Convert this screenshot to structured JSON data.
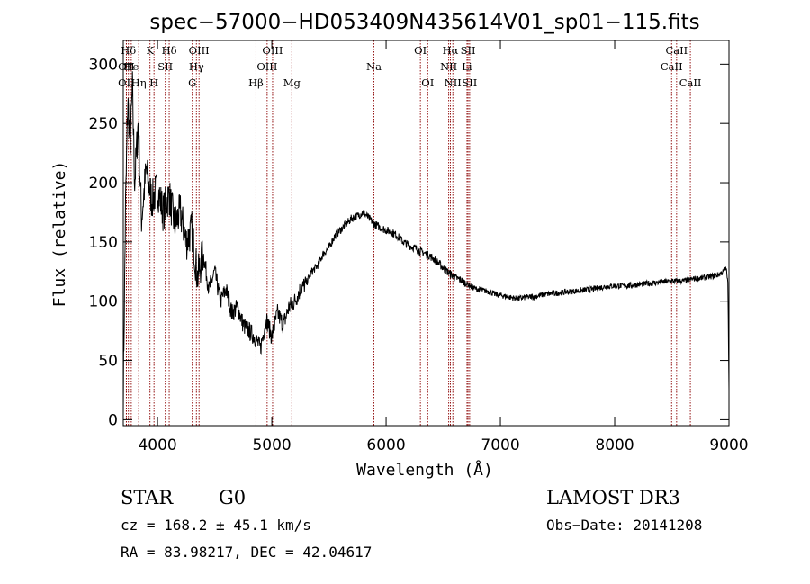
{
  "chart_data": {
    "type": "line",
    "title": "spec−57000−HD053409N435614V01_sp01−115.fits",
    "xlabel": "Wavelength (Å)",
    "ylabel": "Flux (relative)",
    "xlim": [
      3700,
      9000
    ],
    "ylim": [
      -5,
      320
    ],
    "x_ticks": [
      4000,
      5000,
      6000,
      7000,
      8000,
      9000
    ],
    "y_ticks": [
      0,
      50,
      100,
      150,
      200,
      250,
      300
    ],
    "grid": false,
    "line_color": "#000000",
    "marker_color": "#8b0000",
    "spectrum": {
      "x": [
        3700,
        3720,
        3740,
        3760,
        3780,
        3800,
        3830,
        3860,
        3900,
        3950,
        4000,
        4050,
        4100,
        4150,
        4200,
        4250,
        4300,
        4350,
        4400,
        4450,
        4500,
        4550,
        4600,
        4650,
        4700,
        4750,
        4800,
        4850,
        4900,
        4950,
        5000,
        5050,
        5100,
        5150,
        5200,
        5250,
        5300,
        5350,
        5400,
        5450,
        5500,
        5550,
        5600,
        5650,
        5700,
        5750,
        5800,
        5850,
        5900,
        5950,
        6000,
        6050,
        6100,
        6150,
        6200,
        6250,
        6300,
        6350,
        6400,
        6450,
        6500,
        6550,
        6600,
        6650,
        6700,
        6750,
        6800,
        6850,
        6900,
        6950,
        7000,
        7050,
        7100,
        7150,
        7200,
        7300,
        7400,
        7500,
        7600,
        7700,
        7800,
        7900,
        8000,
        8100,
        8200,
        8300,
        8400,
        8500,
        8600,
        8700,
        8800,
        8900,
        8950,
        8975,
        8990,
        9000
      ],
      "y": [
        20,
        180,
        270,
        230,
        280,
        200,
        250,
        170,
        210,
        185,
        195,
        175,
        190,
        165,
        175,
        150,
        160,
        120,
        140,
        110,
        125,
        100,
        110,
        90,
        95,
        80,
        75,
        70,
        60,
        85,
        70,
        90,
        80,
        95,
        100,
        110,
        115,
        125,
        130,
        140,
        145,
        155,
        160,
        165,
        170,
        172,
        175,
        170,
        165,
        162,
        160,
        158,
        155,
        150,
        147,
        145,
        142,
        140,
        137,
        133,
        128,
        124,
        120,
        118,
        115,
        112,
        110,
        109,
        108,
        106,
        105,
        104,
        103,
        102,
        103,
        104,
        106,
        107,
        108,
        109,
        110,
        112,
        113,
        113,
        114,
        115,
        116,
        117,
        117,
        119,
        120,
        122,
        125,
        128,
        115,
        25
      ]
    },
    "lines": [
      {
        "label": "Hδ",
        "x": 3745,
        "row": 0
      },
      {
        "label": "OII",
        "x": 3727,
        "row": 1
      },
      {
        "label": "He",
        "x": 3770,
        "row": 1
      },
      {
        "label": "OII",
        "x": 3727,
        "row": 2
      },
      {
        "label": "Hη",
        "x": 3835,
        "row": 2
      },
      {
        "label": "K",
        "x": 3934,
        "row": 0
      },
      {
        "label": "SII",
        "x": 4068,
        "row": 1
      },
      {
        "label": "H",
        "x": 3969,
        "row": 2
      },
      {
        "label": "Hδ",
        "x": 4102,
        "row": 0
      },
      {
        "label": "OIII",
        "x": 4363,
        "row": 0
      },
      {
        "label": "Hγ",
        "x": 4340,
        "row": 1
      },
      {
        "label": "G",
        "x": 4304,
        "row": 2
      },
      {
        "label": "OIII",
        "x": 5007,
        "row": 0
      },
      {
        "label": "OIII",
        "x": 4959,
        "row": 1
      },
      {
        "label": "Hβ",
        "x": 4861,
        "row": 2
      },
      {
        "label": "Mg",
        "x": 5175,
        "row": 2
      },
      {
        "label": "Na",
        "x": 5893,
        "row": 1
      },
      {
        "label": "OI",
        "x": 6300,
        "row": 0
      },
      {
        "label": "OI",
        "x": 6364,
        "row": 2
      },
      {
        "label": "Hα",
        "x": 6563,
        "row": 0
      },
      {
        "label": "SII",
        "x": 6717,
        "row": 0
      },
      {
        "label": "NII",
        "x": 6548,
        "row": 1
      },
      {
        "label": "Li",
        "x": 6708,
        "row": 1
      },
      {
        "label": "NII",
        "x": 6584,
        "row": 2
      },
      {
        "label": "SII",
        "x": 6731,
        "row": 2
      },
      {
        "label": "CaII",
        "x": 8542,
        "row": 0
      },
      {
        "label": "CaII",
        "x": 8498,
        "row": 1
      },
      {
        "label": "CaII",
        "x": 8662,
        "row": 2
      }
    ]
  },
  "info": {
    "object_class": "STAR",
    "subclass": "G0",
    "survey": "LAMOST DR3",
    "cz": "cz = 168.2 ± 45.1 km/s",
    "obs_date": "Obs−Date: 20141208",
    "coords": "RA =  83.98217, DEC =  42.04617"
  }
}
